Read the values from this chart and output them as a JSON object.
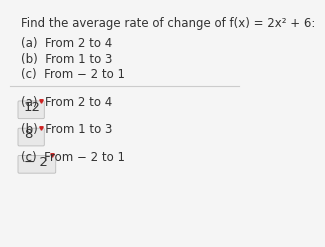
{
  "background_color": "#f5f5f5",
  "title_line": "Find the average rate of change of f(x) = 2x² + 6:",
  "question_parts": [
    "(a)  From 2 to 4",
    "(b)  From 1 to 3",
    "(c)  From − 2 to 1"
  ],
  "sections": [
    {
      "label": "(a)  From 2 to 4",
      "answer": "12",
      "answer_has_minus": false
    },
    {
      "label": "(b)  From 1 to 3",
      "answer": "8",
      "answer_has_minus": false
    },
    {
      "label": "(c)  From − 2 to 1",
      "answer": "− 2",
      "answer_has_minus": true
    }
  ],
  "font_size_title": 8.5,
  "font_size_parts": 8.5,
  "font_size_answer": 9.5,
  "text_color": "#333333",
  "box_color": "#e8e8e8",
  "box_edge_color": "#bbbbbb",
  "divider_color": "#cccccc"
}
